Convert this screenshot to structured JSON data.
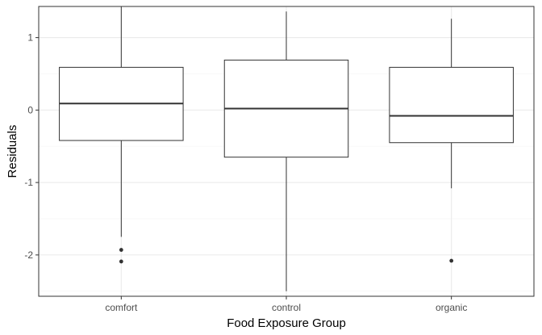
{
  "chart_data": {
    "type": "boxplot",
    "xlabel": "Food Exposure Group",
    "ylabel": "Residuals",
    "ylim": [
      -2.57,
      1.43
    ],
    "yticks": [
      -2,
      -1,
      0,
      1
    ],
    "ytick_labels": [
      "-2",
      "-1",
      "0",
      "1"
    ],
    "y_minor_ticks": [
      -2.5,
      -1.5,
      -0.5,
      0.5
    ],
    "grid": true,
    "categories": [
      "comfort",
      "control",
      "organic"
    ],
    "boxes": [
      {
        "category": "comfort",
        "whisker_low": -1.75,
        "q1": -0.42,
        "median": 0.09,
        "q3": 0.59,
        "whisker_high": 1.43,
        "outliers": [
          -1.93,
          -2.09
        ]
      },
      {
        "category": "control",
        "whisker_low": -2.5,
        "q1": -0.65,
        "median": 0.02,
        "q3": 0.69,
        "whisker_high": 1.36,
        "outliers": []
      },
      {
        "category": "organic",
        "whisker_low": -1.08,
        "q1": -0.45,
        "median": -0.08,
        "q3": 0.59,
        "whisker_high": 1.26,
        "outliers": [
          -2.08
        ]
      }
    ],
    "colors": {
      "box_fill": "#ffffff",
      "box_stroke": "#333333",
      "grid_major": "#ebebeb",
      "grid_minor": "#f5f5f5",
      "panel_border": "#333333",
      "outlier": "#333333"
    }
  }
}
